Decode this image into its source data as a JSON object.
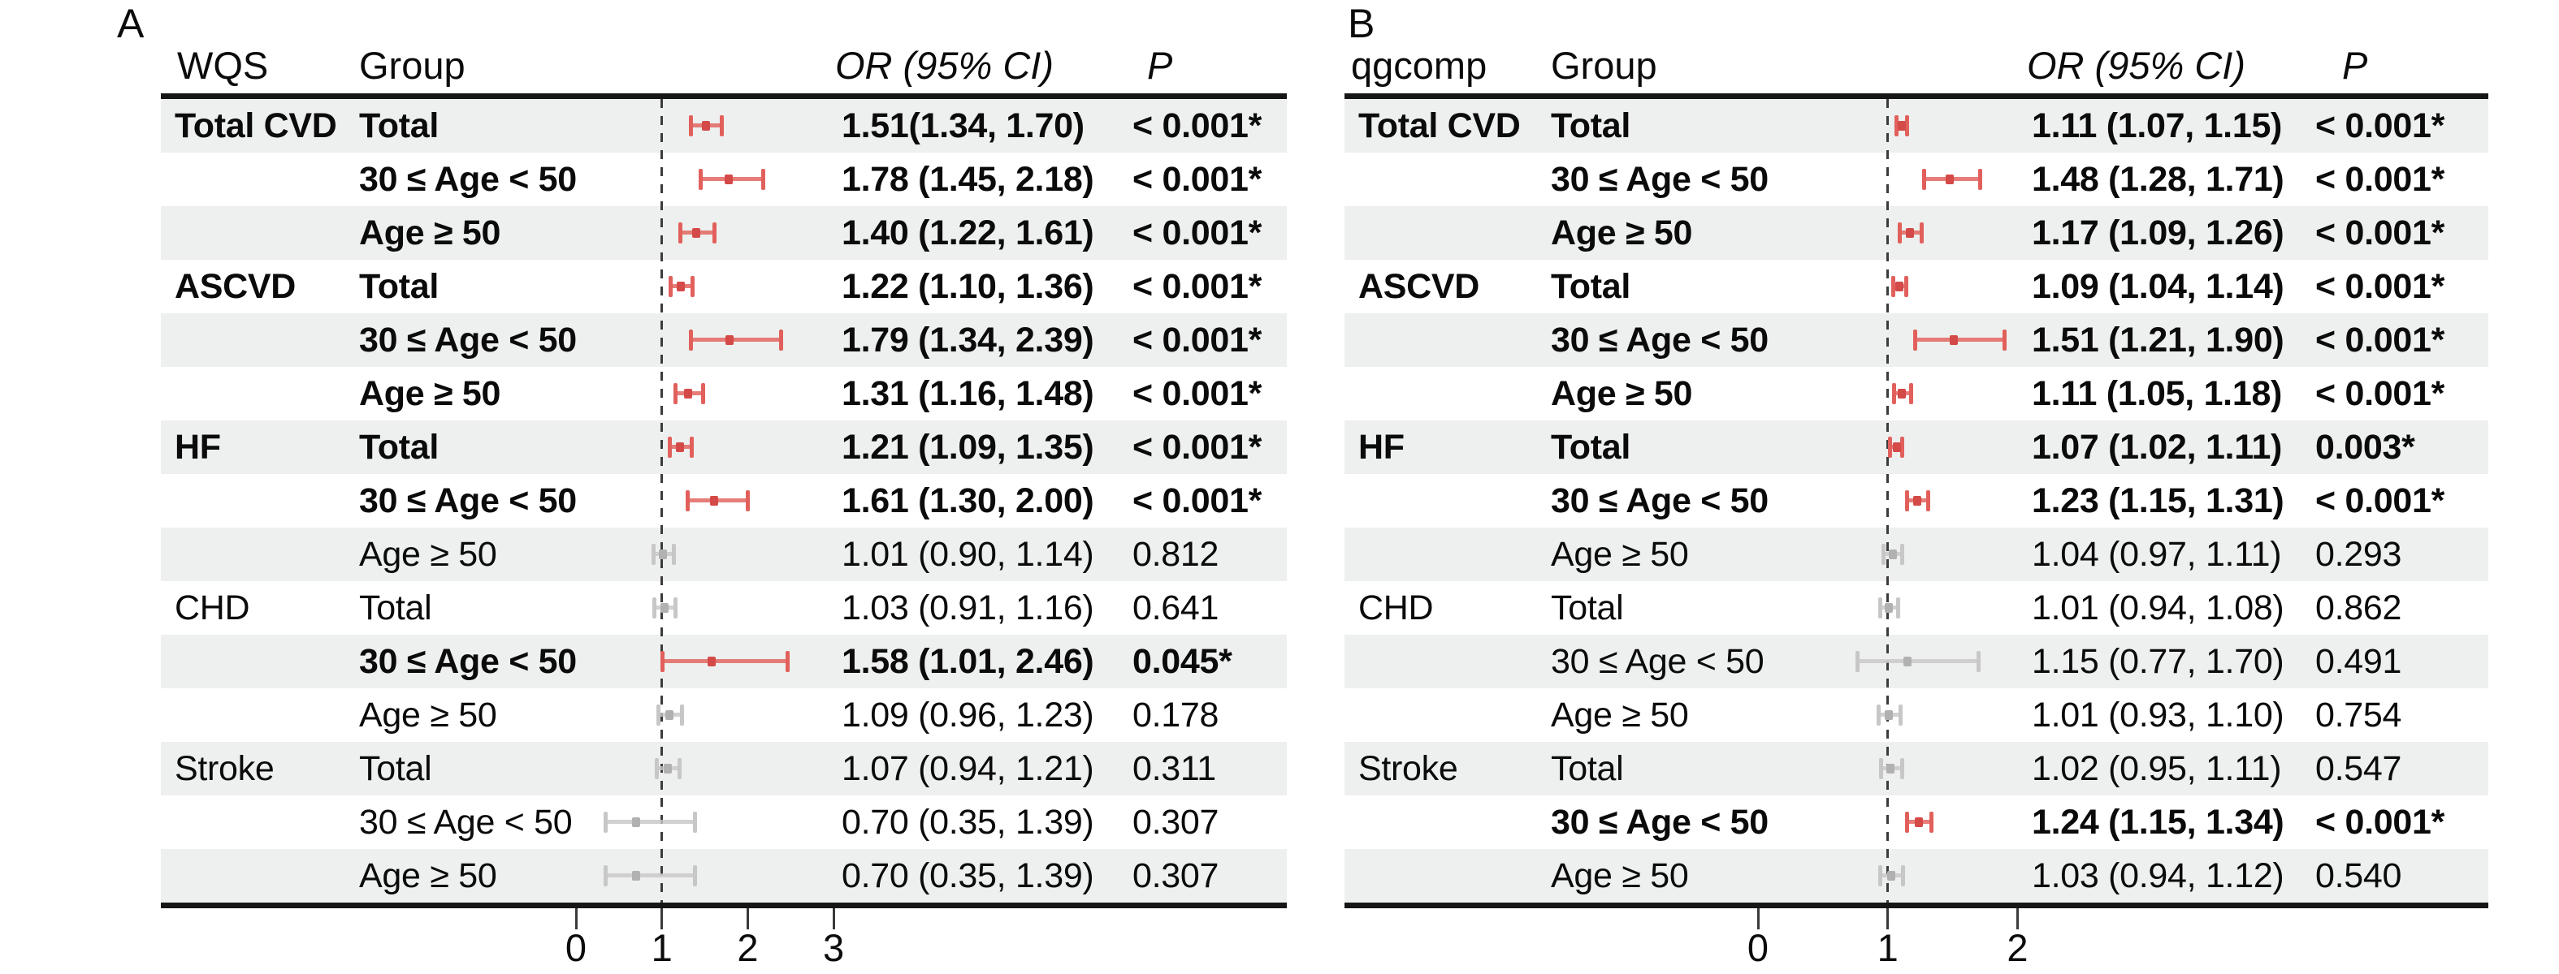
{
  "colors": {
    "significant": "#E2605C",
    "significant_point": "#D44A48",
    "nonsignificant": "#C7C7C7",
    "nonsignificant_point": "#B1B1B1",
    "row_shade": "#EDF0EE",
    "rule": "#161616",
    "reference_dash": "#3C3C3C"
  },
  "chart_data": [
    {
      "type": "scatter",
      "subtype": "forest-plot",
      "title": "A",
      "columns": {
        "method": "WQS",
        "group": "Group",
        "or": "OR (95% CI)",
        "p": "P"
      },
      "x_axis": {
        "ticks": [
          0,
          1,
          2,
          3
        ],
        "reference_line": 1,
        "range": [
          -0.8,
          3.6
        ],
        "grid": false
      },
      "rows": [
        {
          "outcome": "Total CVD",
          "group": "Total",
          "or": 1.51,
          "lcl": 1.34,
          "ucl": 1.7,
          "or_label": "1.51(1.34, 1.70)",
          "p_label": "< 0.001*",
          "significant": true
        },
        {
          "outcome": "",
          "group": "30 ≤ Age < 50",
          "or": 1.78,
          "lcl": 1.45,
          "ucl": 2.18,
          "or_label": "1.78 (1.45, 2.18)",
          "p_label": "< 0.001*",
          "significant": true
        },
        {
          "outcome": "",
          "group": "Age ≥ 50",
          "or": 1.4,
          "lcl": 1.22,
          "ucl": 1.61,
          "or_label": "1.40 (1.22, 1.61)",
          "p_label": "< 0.001*",
          "significant": true
        },
        {
          "outcome": "ASCVD",
          "group": "Total",
          "or": 1.22,
          "lcl": 1.1,
          "ucl": 1.36,
          "or_label": "1.22 (1.10, 1.36)",
          "p_label": "< 0.001*",
          "significant": true
        },
        {
          "outcome": "",
          "group": "30 ≤ Age < 50",
          "or": 1.79,
          "lcl": 1.34,
          "ucl": 2.39,
          "or_label": "1.79 (1.34, 2.39)",
          "p_label": "< 0.001*",
          "significant": true
        },
        {
          "outcome": "",
          "group": "Age ≥ 50",
          "or": 1.31,
          "lcl": 1.16,
          "ucl": 1.48,
          "or_label": "1.31 (1.16, 1.48)",
          "p_label": "< 0.001*",
          "significant": true
        },
        {
          "outcome": "HF",
          "group": "Total",
          "or": 1.21,
          "lcl": 1.09,
          "ucl": 1.35,
          "or_label": "1.21 (1.09, 1.35)",
          "p_label": "< 0.001*",
          "significant": true
        },
        {
          "outcome": "",
          "group": "30 ≤ Age < 50",
          "or": 1.61,
          "lcl": 1.3,
          "ucl": 2.0,
          "or_label": "1.61 (1.30, 2.00)",
          "p_label": "< 0.001*",
          "significant": true
        },
        {
          "outcome": "",
          "group": "Age ≥ 50",
          "or": 1.01,
          "lcl": 0.9,
          "ucl": 1.14,
          "or_label": "1.01 (0.90, 1.14)",
          "p_label": "0.812",
          "significant": false
        },
        {
          "outcome": "CHD",
          "group": "Total",
          "or": 1.03,
          "lcl": 0.91,
          "ucl": 1.16,
          "or_label": "1.03 (0.91, 1.16)",
          "p_label": "0.641",
          "significant": false
        },
        {
          "outcome": "",
          "group": "30 ≤ Age < 50",
          "or": 1.58,
          "lcl": 1.01,
          "ucl": 2.46,
          "or_label": "1.58 (1.01, 2.46)",
          "p_label": "0.045*",
          "significant": true
        },
        {
          "outcome": "",
          "group": "Age ≥ 50",
          "or": 1.09,
          "lcl": 0.96,
          "ucl": 1.23,
          "or_label": "1.09 (0.96, 1.23)",
          "p_label": "0.178",
          "significant": false
        },
        {
          "outcome": "Stroke",
          "group": "Total",
          "or": 1.07,
          "lcl": 0.94,
          "ucl": 1.21,
          "or_label": "1.07 (0.94, 1.21)",
          "p_label": "0.311",
          "significant": false
        },
        {
          "outcome": "",
          "group": "30 ≤ Age < 50",
          "or": 0.7,
          "lcl": 0.35,
          "ucl": 1.39,
          "or_label": "0.70 (0.35, 1.39)",
          "p_label": "0.307",
          "significant": false
        },
        {
          "outcome": "",
          "group": "Age ≥ 50",
          "or": 0.7,
          "lcl": 0.35,
          "ucl": 1.39,
          "or_label": "0.70 (0.35, 1.39)",
          "p_label": "0.307",
          "significant": false
        }
      ]
    },
    {
      "type": "scatter",
      "subtype": "forest-plot",
      "title": "B",
      "columns": {
        "method": "qgcomp",
        "group": "Group",
        "or": "OR (95% CI)",
        "p": "P"
      },
      "x_axis": {
        "ticks": [
          0,
          1,
          2
        ],
        "reference_line": 1,
        "range": [
          -0.8,
          2.6
        ],
        "grid": false
      },
      "rows": [
        {
          "outcome": "Total CVD",
          "group": "Total",
          "or": 1.11,
          "lcl": 1.07,
          "ucl": 1.15,
          "or_label": "1.11 (1.07, 1.15)",
          "p_label": "< 0.001*",
          "significant": true
        },
        {
          "outcome": "",
          "group": "30 ≤ Age < 50",
          "or": 1.48,
          "lcl": 1.28,
          "ucl": 1.71,
          "or_label": "1.48 (1.28, 1.71)",
          "p_label": "< 0.001*",
          "significant": true
        },
        {
          "outcome": "",
          "group": "Age ≥ 50",
          "or": 1.17,
          "lcl": 1.09,
          "ucl": 1.26,
          "or_label": "1.17 (1.09, 1.26)",
          "p_label": "< 0.001*",
          "significant": true
        },
        {
          "outcome": "ASCVD",
          "group": "Total",
          "or": 1.09,
          "lcl": 1.04,
          "ucl": 1.14,
          "or_label": "1.09 (1.04, 1.14)",
          "p_label": "< 0.001*",
          "significant": true
        },
        {
          "outcome": "",
          "group": "30 ≤ Age < 50",
          "or": 1.51,
          "lcl": 1.21,
          "ucl": 1.9,
          "or_label": "1.51 (1.21, 1.90)",
          "p_label": "< 0.001*",
          "significant": true
        },
        {
          "outcome": "",
          "group": "Age ≥ 50",
          "or": 1.11,
          "lcl": 1.05,
          "ucl": 1.18,
          "or_label": "1.11 (1.05, 1.18)",
          "p_label": "< 0.001*",
          "significant": true
        },
        {
          "outcome": "HF",
          "group": "Total",
          "or": 1.07,
          "lcl": 1.02,
          "ucl": 1.11,
          "or_label": "1.07 (1.02, 1.11)",
          "p_label": "0.003*",
          "significant": true
        },
        {
          "outcome": "",
          "group": "30 ≤ Age < 50",
          "or": 1.23,
          "lcl": 1.15,
          "ucl": 1.31,
          "or_label": "1.23 (1.15, 1.31)",
          "p_label": "< 0.001*",
          "significant": true
        },
        {
          "outcome": "",
          "group": "Age ≥ 50",
          "or": 1.04,
          "lcl": 0.97,
          "ucl": 1.11,
          "or_label": "1.04 (0.97, 1.11)",
          "p_label": "0.293",
          "significant": false
        },
        {
          "outcome": "CHD",
          "group": "Total",
          "or": 1.01,
          "lcl": 0.94,
          "ucl": 1.08,
          "or_label": "1.01 (0.94, 1.08)",
          "p_label": "0.862",
          "significant": false
        },
        {
          "outcome": "",
          "group": "30 ≤ Age < 50",
          "or": 1.15,
          "lcl": 0.77,
          "ucl": 1.7,
          "or_label": "1.15 (0.77, 1.70)",
          "p_label": "0.491",
          "significant": false
        },
        {
          "outcome": "",
          "group": "Age ≥ 50",
          "or": 1.01,
          "lcl": 0.93,
          "ucl": 1.1,
          "or_label": "1.01 (0.93, 1.10)",
          "p_label": "0.754",
          "significant": false
        },
        {
          "outcome": "Stroke",
          "group": "Total",
          "or": 1.02,
          "lcl": 0.95,
          "ucl": 1.11,
          "or_label": "1.02 (0.95, 1.11)",
          "p_label": "0.547",
          "significant": false
        },
        {
          "outcome": "",
          "group": "30 ≤ Age < 50",
          "or": 1.24,
          "lcl": 1.15,
          "ucl": 1.34,
          "or_label": "1.24 (1.15, 1.34)",
          "p_label": "< 0.001*",
          "significant": true
        },
        {
          "outcome": "",
          "group": "Age ≥ 50",
          "or": 1.03,
          "lcl": 0.94,
          "ucl": 1.12,
          "or_label": "1.03 (0.94, 1.12)",
          "p_label": "0.540",
          "significant": false
        }
      ]
    }
  ]
}
